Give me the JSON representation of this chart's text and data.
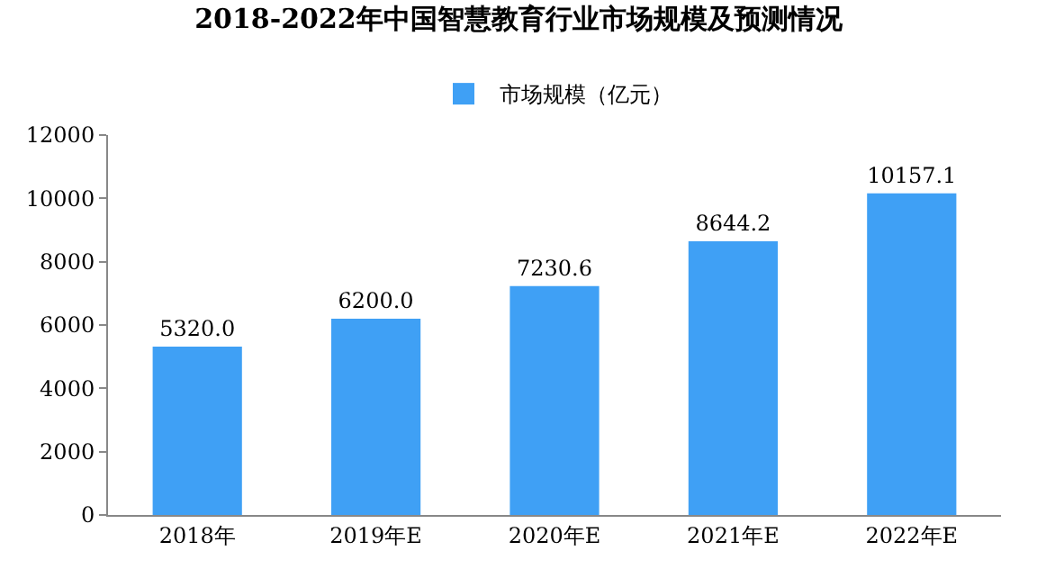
{
  "chart_data": {
    "type": "bar",
    "title": "2018-2022年中国智慧教育行业市场规模及预测情况",
    "categories": [
      "2018年",
      "2019年E",
      "2020年E",
      "2021年E",
      "2022年E"
    ],
    "series": [
      {
        "name": "市场规模（亿元）",
        "color": "#3fa0f5",
        "values": [
          5320.0,
          6200.0,
          7230.6,
          8644.2,
          10157.1
        ]
      }
    ],
    "value_labels": [
      "5320.0",
      "6200.0",
      "7230.6",
      "8644.2",
      "10157.1"
    ],
    "ylim": [
      0,
      12000
    ],
    "yticks": [
      0,
      2000,
      4000,
      6000,
      8000,
      10000,
      12000
    ],
    "legend": "top"
  }
}
